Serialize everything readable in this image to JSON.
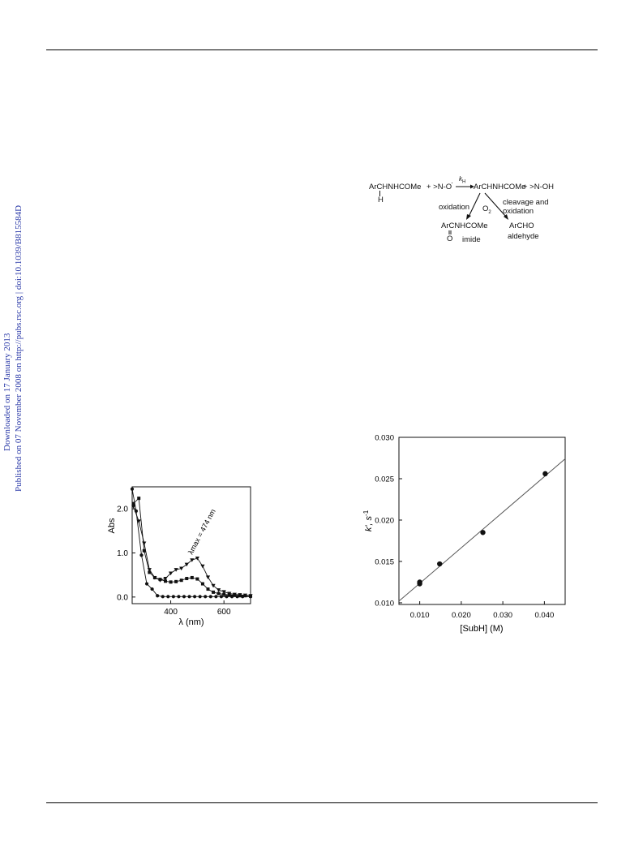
{
  "sidebar": {
    "line1": "Downloaded on 17 January 2013",
    "line2": "Published on 07 November 2008 on http://pubs.rsc.org | doi:10.1039/B815584D"
  },
  "scheme": {
    "reactant": "ArCHNHCOMe",
    "reactant_h": "H",
    "plus1": "+ >N-O",
    "radical_dot": "·",
    "k_label": "k",
    "k_sub": "H",
    "product": "ArCHNHCOMe",
    "plus2": "+ >N-OH",
    "oxidation": "oxidation",
    "o2": "O",
    "o2_sub": "2",
    "cleavage1": "cleavage and",
    "cleavage2": "oxidation",
    "imide_formula": "ArCNHCOMe",
    "imide_o": "O",
    "imide_label": "imide",
    "aldehyde_formula": "ArCHO",
    "aldehyde_label": "aldehyde"
  },
  "chart_data": [
    {
      "type": "line",
      "xlabel": "λ (nm)",
      "ylabel": "Abs",
      "xlim": [
        255,
        700
      ],
      "ylim": [
        -0.15,
        2.5
      ],
      "xticks": [
        "400",
        "600"
      ],
      "yticks": [
        "0.0",
        "1.0",
        "2.0"
      ],
      "annotation": "λmax = 474 nm",
      "series": [
        {
          "marker": "triangle-down",
          "x": [
            260,
            280,
            300,
            320,
            340,
            360,
            380,
            400,
            420,
            440,
            460,
            480,
            500,
            520,
            540,
            560,
            580,
            600,
            620,
            640,
            660,
            680,
            700
          ],
          "y": [
            2.05,
            1.72,
            1.22,
            0.62,
            0.44,
            0.38,
            0.42,
            0.54,
            0.62,
            0.65,
            0.74,
            0.84,
            0.88,
            0.7,
            0.45,
            0.26,
            0.16,
            0.12,
            0.08,
            0.06,
            0.05,
            0.04,
            0.03
          ]
        },
        {
          "marker": "square",
          "x": [
            260,
            280,
            300,
            320,
            340,
            360,
            380,
            400,
            420,
            440,
            460,
            480,
            500,
            520,
            540,
            560,
            580,
            600,
            620,
            640,
            660,
            680,
            700
          ],
          "y": [
            2.12,
            2.24,
            1.05,
            0.56,
            0.44,
            0.4,
            0.36,
            0.34,
            0.35,
            0.38,
            0.42,
            0.44,
            0.41,
            0.3,
            0.18,
            0.11,
            0.08,
            0.06,
            0.05,
            0.04,
            0.03,
            0.03,
            0.02
          ]
        },
        {
          "marker": "circle",
          "x": [
            255,
            270,
            290,
            310,
            330,
            350,
            370,
            390,
            410,
            430,
            450,
            470,
            490,
            510,
            530,
            550,
            570,
            590,
            610,
            630,
            650,
            670,
            700
          ],
          "y": [
            2.45,
            1.95,
            0.95,
            0.3,
            0.18,
            0.03,
            0.01,
            0.01,
            0.01,
            0.01,
            0.01,
            0.01,
            0.01,
            0.01,
            0.01,
            0.01,
            0.01,
            0.01,
            0.01,
            0.01,
            0.01,
            0.01,
            0.01
          ]
        }
      ]
    },
    {
      "type": "scatter",
      "xlabel": "[SubH] (M)",
      "ylabel": "k', s",
      "ylabel_sup": "-1",
      "xlim": [
        0.005,
        0.045
      ],
      "ylim": [
        0.0098,
        0.03
      ],
      "xticks": [
        0.01,
        0.02,
        0.03,
        0.04
      ],
      "xtick_labels": [
        "0.010",
        "0.020",
        "0.030",
        "0.040"
      ],
      "yticks": [
        0.01,
        0.015,
        0.02,
        0.025,
        0.03
      ],
      "ytick_labels": [
        "0.010",
        "0.015",
        "0.020",
        "0.025",
        "0.030"
      ],
      "points": {
        "x": [
          0.01,
          0.01,
          0.0148,
          0.0252,
          0.0402
        ],
        "y": [
          0.0125,
          0.0123,
          0.0147,
          0.0185,
          0.0256
        ]
      },
      "fit": {
        "x": [
          0.005,
          0.045
        ],
        "y": [
          0.0102,
          0.0274
        ]
      }
    }
  ]
}
